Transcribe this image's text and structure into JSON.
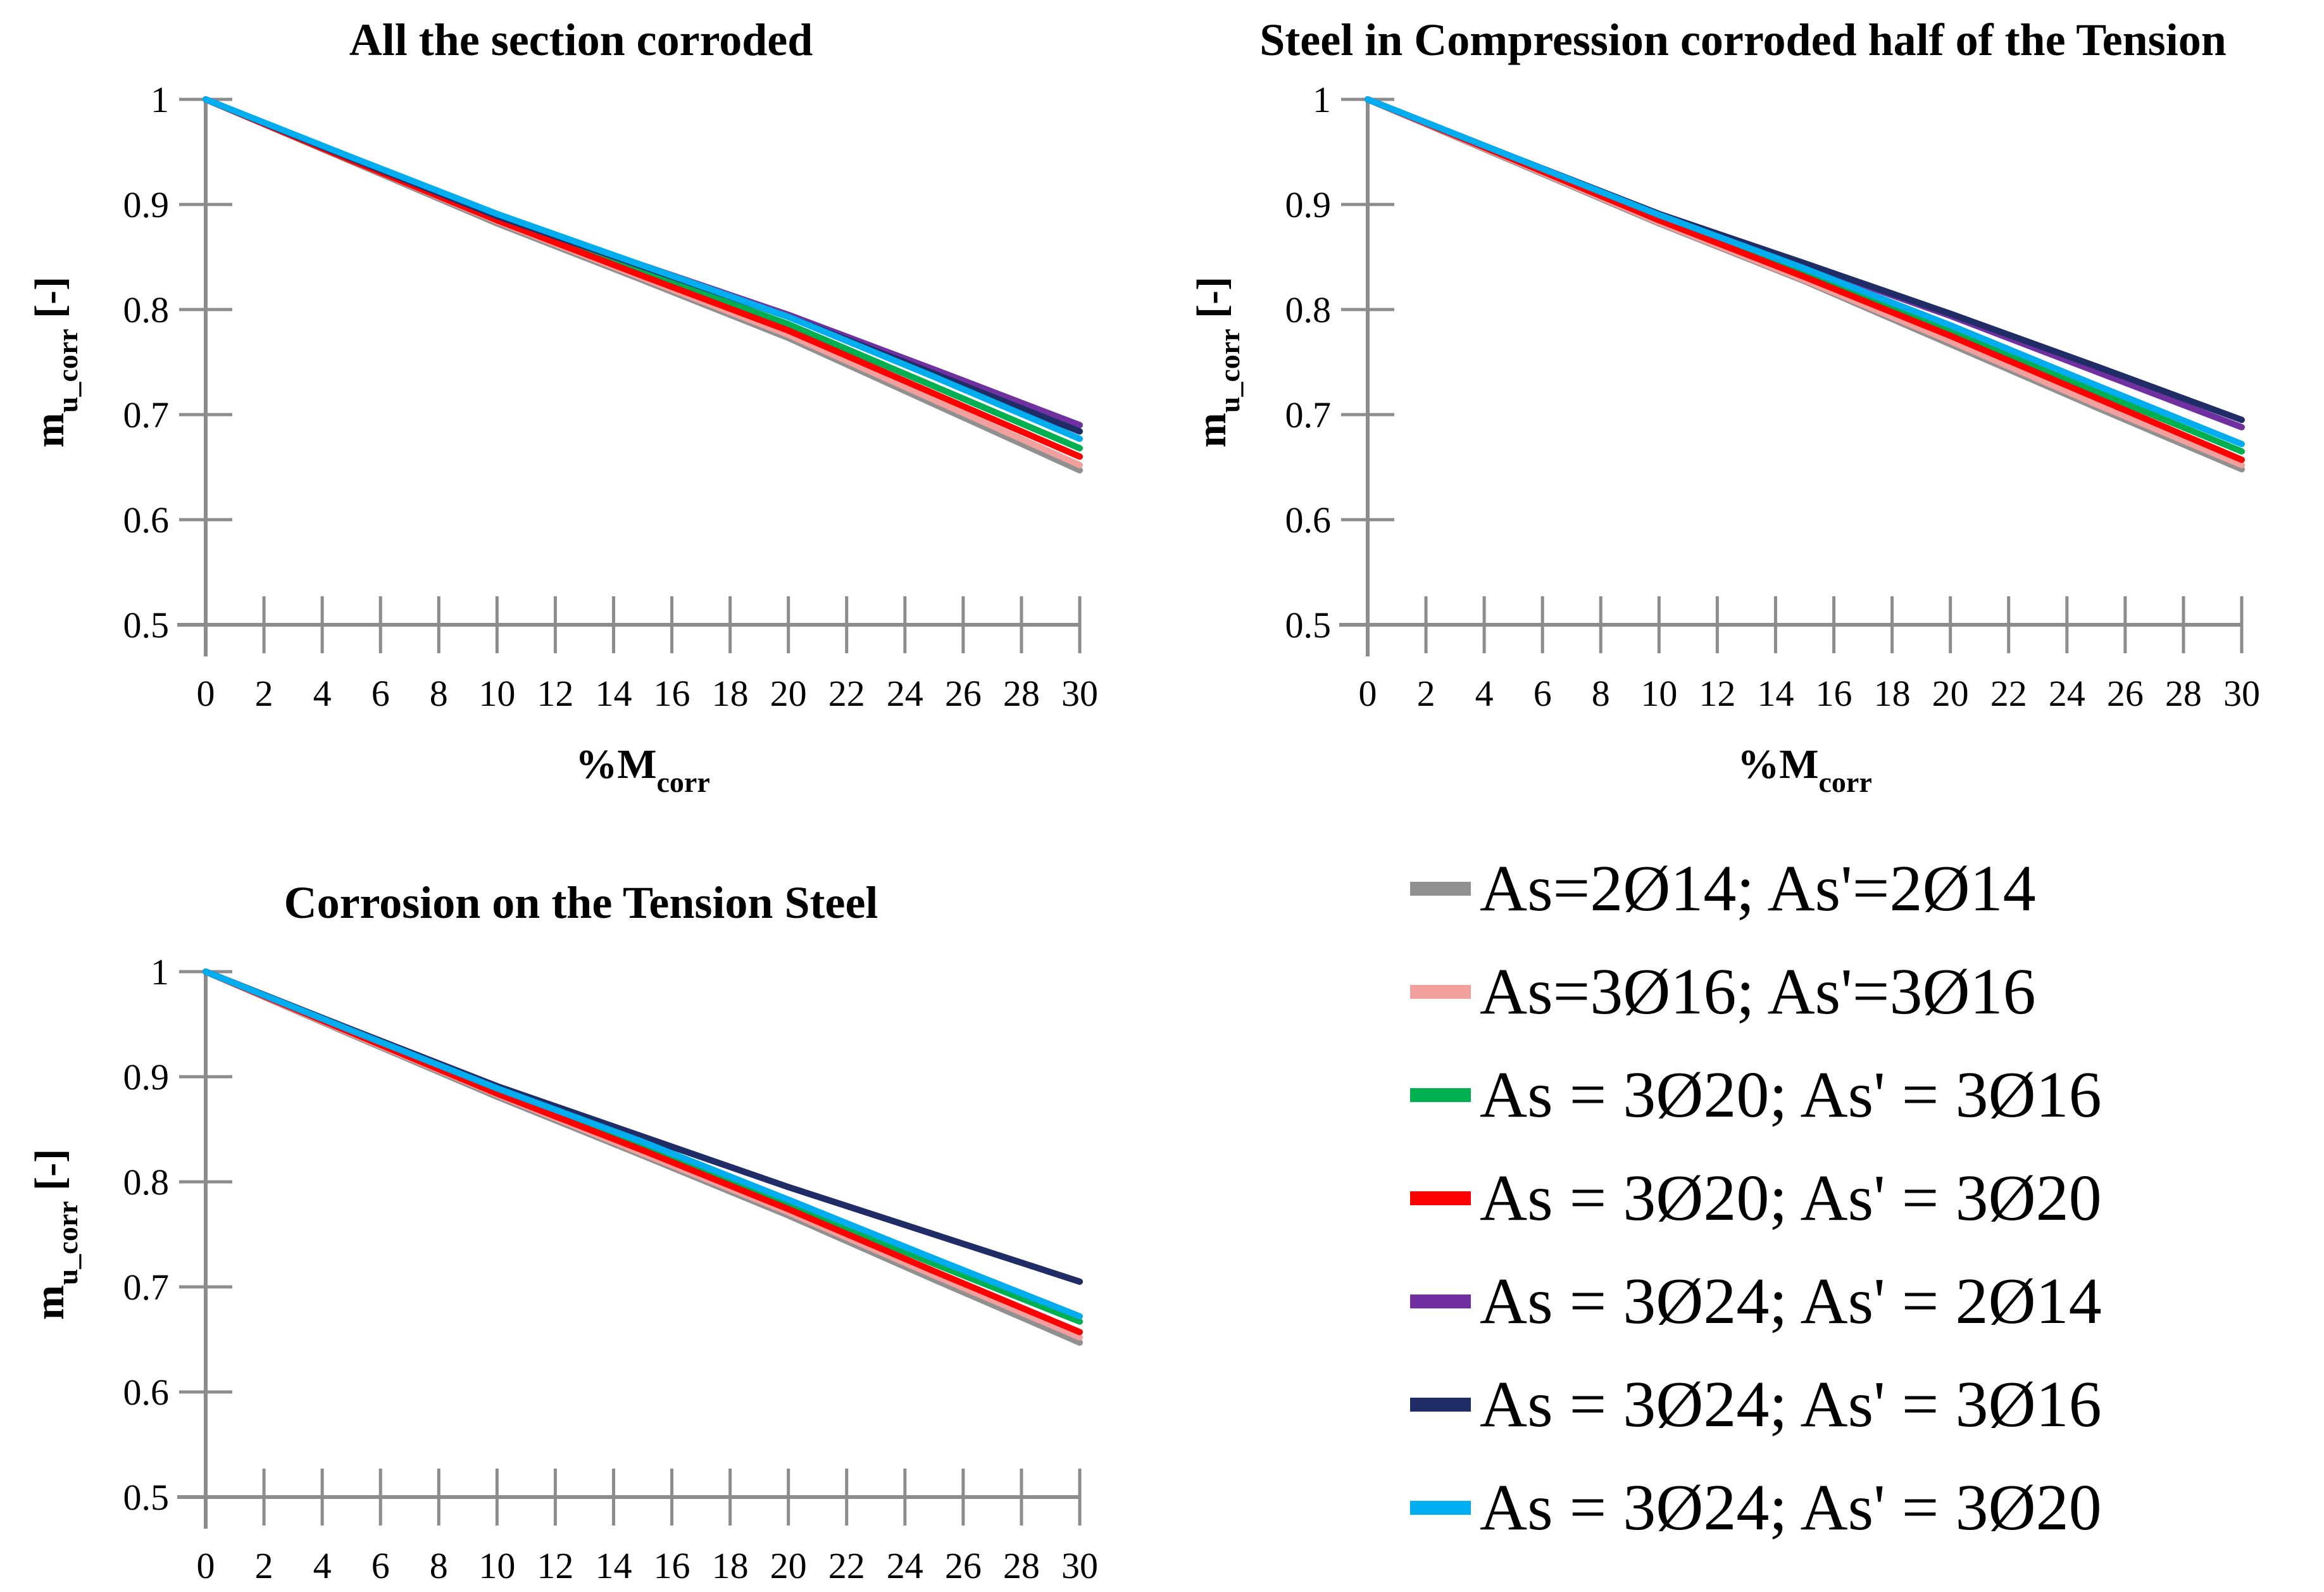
{
  "figure": {
    "background": "#ffffff",
    "axis_color": "#8C8C8C",
    "text_color": "#000000"
  },
  "legend": {
    "position": "bottom-right-quadrant",
    "items": [
      {
        "label": "As=2Ø14; As'=2Ø14",
        "color": "#909090"
      },
      {
        "label": "As=3Ø16; As'=3Ø16",
        "color": "#F2A09E"
      },
      {
        "label": "As = 3Ø20; As' = 3Ø16",
        "color": "#00B050"
      },
      {
        "label": "As = 3Ø20; As' = 3Ø20",
        "color": "#FE0000"
      },
      {
        "label": "As = 3Ø24; As' = 2Ø14",
        "color": "#7030A0"
      },
      {
        "label": "As = 3Ø24; As' = 3Ø16",
        "color": "#1F2C66"
      },
      {
        "label": "As = 3Ø24; As' = 3Ø20",
        "color": "#00AEEF"
      }
    ]
  },
  "chart_data": [
    {
      "type": "line",
      "title": "All the section corroded",
      "xlabel_main": "%M",
      "xlabel_sub": "corr",
      "ylabel_main": "m",
      "ylabel_sub": "u_corr",
      "ylabel_suffix": " [-]",
      "xlim": [
        0,
        30
      ],
      "ylim": [
        0.5,
        1
      ],
      "x_ticks": [
        0,
        2,
        4,
        6,
        8,
        10,
        12,
        14,
        16,
        18,
        20,
        22,
        24,
        26,
        28,
        30
      ],
      "y_ticks": [
        "1",
        "0.9",
        "0.8",
        "0.7",
        "0.6",
        "0.5"
      ],
      "grid": false,
      "x": [
        0,
        5,
        10,
        15,
        20,
        25,
        30
      ],
      "series": [
        {
          "name": "As=2Ø14; As'=2Ø14",
          "color": "#909090",
          "values": [
            1,
            0.941,
            0.882,
            0.828,
            0.773,
            0.71,
            0.647
          ]
        },
        {
          "name": "As=3Ø16; As'=3Ø16",
          "color": "#F2A09E",
          "values": [
            1,
            0.942,
            0.884,
            0.83,
            0.776,
            0.714,
            0.652
          ]
        },
        {
          "name": "As = 3Ø20; As' = 3Ø16",
          "color": "#00B050",
          "values": [
            1,
            0.943,
            0.887,
            0.836,
            0.786,
            0.727,
            0.668
          ]
        },
        {
          "name": "As = 3Ø20; As' = 3Ø20",
          "color": "#FE0000",
          "values": [
            1,
            0.942,
            0.885,
            0.832,
            0.78,
            0.72,
            0.66
          ]
        },
        {
          "name": "As = 3Ø24; As' = 2Ø14",
          "color": "#7030A0",
          "values": [
            1,
            0.944,
            0.889,
            0.842,
            0.795,
            0.743,
            0.69
          ]
        },
        {
          "name": "As = 3Ø24; As' = 3Ø16",
          "color": "#1F2C66",
          "values": [
            1,
            0.944,
            0.889,
            0.841,
            0.793,
            0.739,
            0.684
          ]
        },
        {
          "name": "As = 3Ø24; As' = 3Ø20",
          "color": "#00AEEF",
          "values": [
            1,
            0.945,
            0.891,
            0.842,
            0.793,
            0.736,
            0.677
          ]
        }
      ]
    },
    {
      "type": "line",
      "title": "Steel in Compression corroded half of the Tension",
      "xlabel_main": "%M",
      "xlabel_sub": "corr",
      "ylabel_main": "m",
      "ylabel_sub": "u_corr",
      "ylabel_suffix": " [-]",
      "xlim": [
        0,
        30
      ],
      "ylim": [
        0.5,
        1
      ],
      "x_ticks": [
        0,
        2,
        4,
        6,
        8,
        10,
        12,
        14,
        16,
        18,
        20,
        22,
        24,
        26,
        28,
        30
      ],
      "y_ticks": [
        "1",
        "0.9",
        "0.8",
        "0.7",
        "0.6",
        "0.5"
      ],
      "grid": false,
      "x": [
        0,
        5,
        10,
        15,
        20,
        25,
        30
      ],
      "series": [
        {
          "name": "As=2Ø14; As'=2Ø14",
          "color": "#909090",
          "values": [
            1,
            0.941,
            0.882,
            0.827,
            0.767,
            0.707,
            0.648
          ]
        },
        {
          "name": "As=3Ø16; As'=3Ø16",
          "color": "#F2A09E",
          "values": [
            1,
            0.942,
            0.883,
            0.828,
            0.77,
            0.71,
            0.652
          ]
        },
        {
          "name": "As = 3Ø20; As' = 3Ø16",
          "color": "#00B050",
          "values": [
            1,
            0.944,
            0.888,
            0.836,
            0.78,
            0.722,
            0.665
          ]
        },
        {
          "name": "As = 3Ø20; As' = 3Ø20",
          "color": "#FE0000",
          "values": [
            1,
            0.943,
            0.885,
            0.831,
            0.775,
            0.716,
            0.657
          ]
        },
        {
          "name": "As = 3Ø24; As' = 2Ø14",
          "color": "#7030A0",
          "values": [
            1,
            0.945,
            0.891,
            0.843,
            0.794,
            0.741,
            0.688
          ]
        },
        {
          "name": "As = 3Ø24; As' = 3Ø16",
          "color": "#1F2C66",
          "values": [
            1,
            0.945,
            0.891,
            0.844,
            0.796,
            0.746,
            0.695
          ]
        },
        {
          "name": "As = 3Ø24; As' = 3Ø20",
          "color": "#00AEEF",
          "values": [
            1,
            0.945,
            0.89,
            0.839,
            0.785,
            0.728,
            0.672
          ]
        }
      ]
    },
    {
      "type": "line",
      "title": "Corrosion on the Tension Steel",
      "xlabel_main": "%M",
      "xlabel_sub": "corr",
      "ylabel_main": "m",
      "ylabel_sub": "u_corr",
      "ylabel_suffix": " [-]",
      "xlim": [
        0,
        30
      ],
      "ylim": [
        0.5,
        1
      ],
      "x_ticks": [
        0,
        2,
        4,
        6,
        8,
        10,
        12,
        14,
        16,
        18,
        20,
        22,
        24,
        26,
        28,
        30
      ],
      "y_ticks": [
        "1",
        "0.9",
        "0.8",
        "0.7",
        "0.6",
        "0.5"
      ],
      "grid": false,
      "x": [
        0,
        5,
        10,
        15,
        20,
        25,
        30
      ],
      "series": [
        {
          "name": "As=2Ø14; As'=2Ø14",
          "color": "#909090",
          "values": [
            1,
            0.94,
            0.881,
            0.825,
            0.768,
            0.707,
            0.647
          ]
        },
        {
          "name": "As=3Ø16; As'=3Ø16",
          "color": "#F2A09E",
          "values": [
            1,
            0.941,
            0.883,
            0.827,
            0.771,
            0.711,
            0.652
          ]
        },
        {
          "name": "As = 3Ø20; As' = 3Ø16",
          "color": "#00B050",
          "values": [
            1,
            0.943,
            0.887,
            0.834,
            0.779,
            0.722,
            0.667
          ]
        },
        {
          "name": "As = 3Ø20; As' = 3Ø20",
          "color": "#FE0000",
          "values": [
            1,
            0.942,
            0.884,
            0.83,
            0.774,
            0.715,
            0.657
          ]
        },
        {
          "name": "As = 3Ø24; As' = 2Ø14",
          "color": "#7030A0",
          "values": [
            1,
            0.945,
            0.891,
            0.843,
            0.795,
            0.75,
            0.705
          ]
        },
        {
          "name": "As = 3Ø24; As' = 3Ø16",
          "color": "#1F2C66",
          "values": [
            1,
            0.945,
            0.891,
            0.843,
            0.795,
            0.75,
            0.705
          ]
        },
        {
          "name": "As = 3Ø24; As' = 3Ø20",
          "color": "#00AEEF",
          "values": [
            1,
            0.944,
            0.889,
            0.838,
            0.783,
            0.727,
            0.672
          ]
        }
      ]
    }
  ]
}
